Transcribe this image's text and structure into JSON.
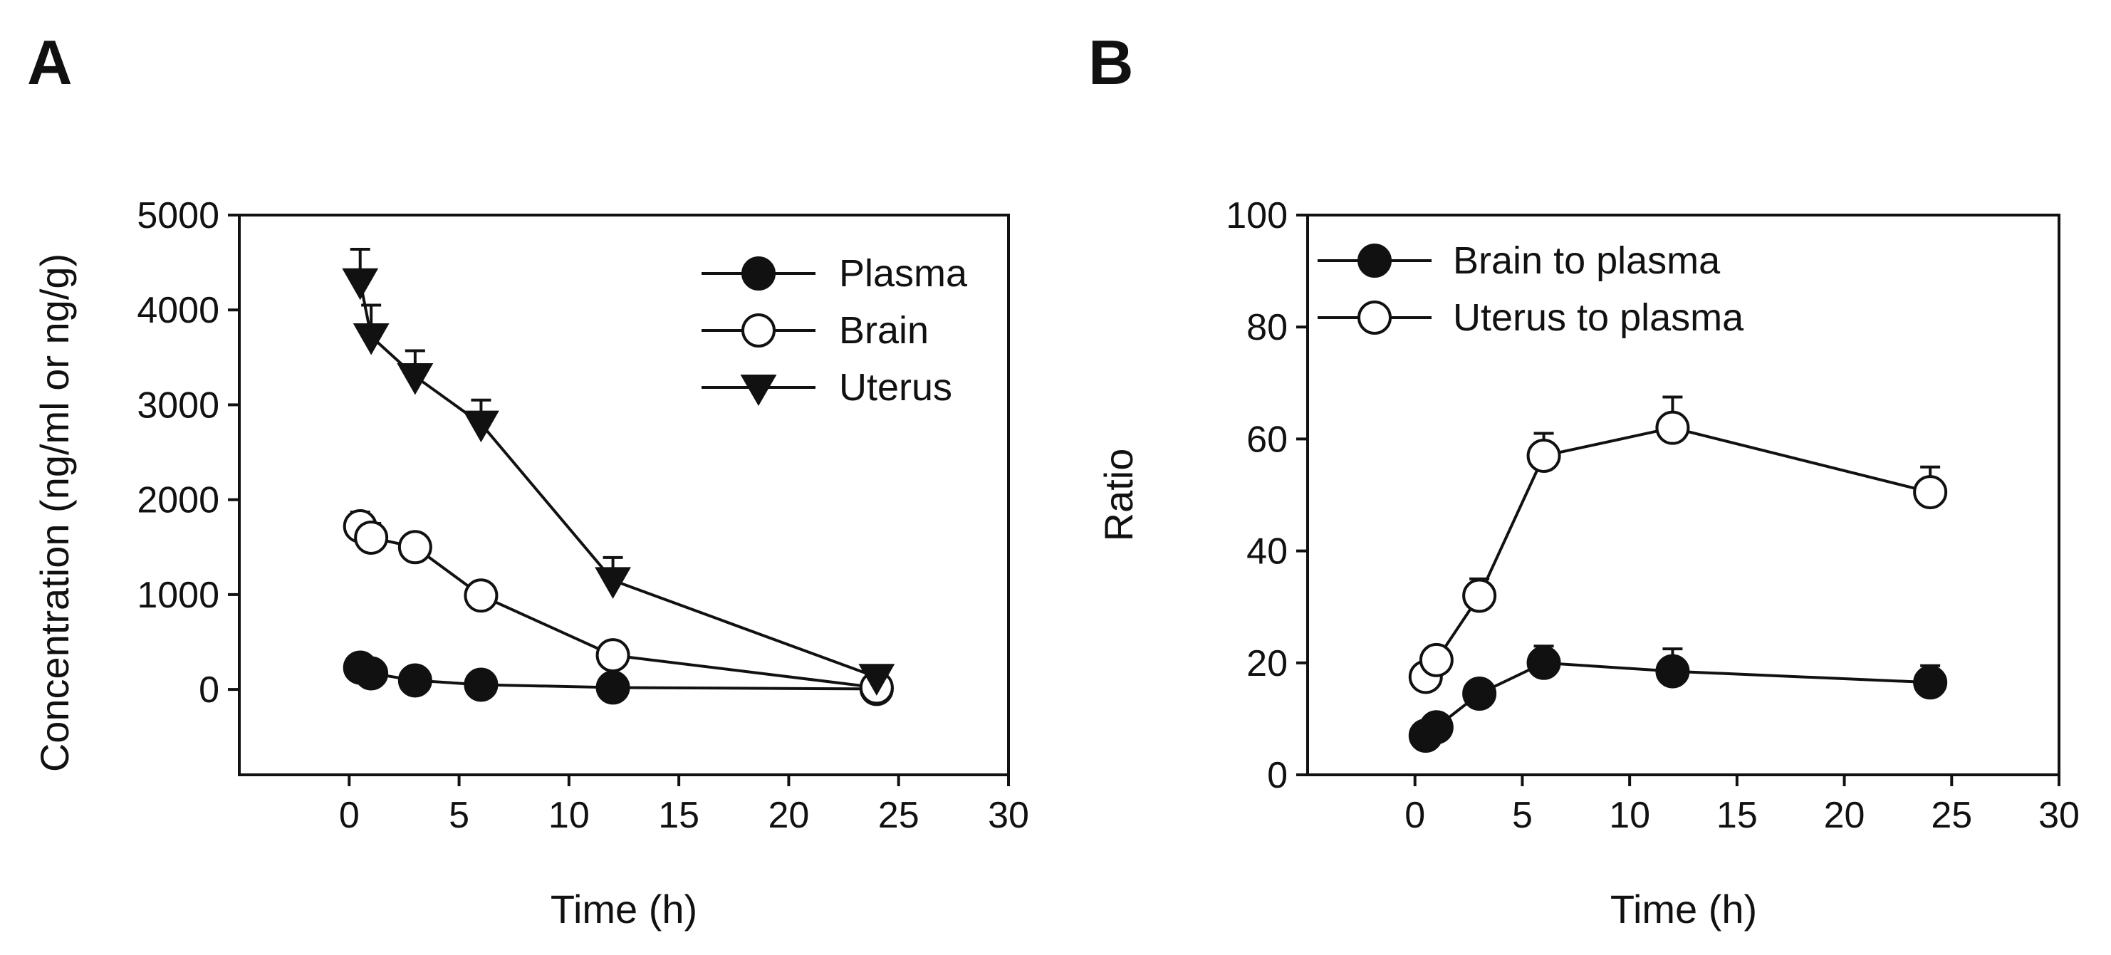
{
  "figure": {
    "colors": {
      "ink": "#111111",
      "background": "#ffffff",
      "open_fill": "#ffffff",
      "closed_fill": "#111111"
    }
  },
  "chart_data": [
    {
      "panel_label": "A",
      "type": "line",
      "xlabel": "Time (h)",
      "ylabel": "Concentration (ng/ml or ng/g)",
      "xlim": [
        -5,
        30
      ],
      "ylim": [
        -900,
        5000
      ],
      "xticks": [
        0,
        5,
        10,
        15,
        20,
        25,
        30
      ],
      "xtick_labels": [
        "0",
        "5",
        "10",
        "15",
        "20",
        "25",
        "30"
      ],
      "yticks": [
        0,
        1000,
        2000,
        3000,
        4000,
        5000
      ],
      "ytick_labels": [
        "0",
        "1000",
        "2000",
        "3000",
        "4000",
        "5000"
      ],
      "legend_position": "top-right",
      "series": [
        {
          "name": "Plasma",
          "marker": "circle-filled",
          "x": [
            0.5,
            1,
            3,
            6,
            12,
            24
          ],
          "y": [
            230,
            170,
            95,
            50,
            20,
            5
          ],
          "error": [
            0,
            0,
            0,
            0,
            0,
            0
          ]
        },
        {
          "name": "Brain",
          "marker": "circle-open",
          "x": [
            0.5,
            1,
            3,
            6,
            12,
            24
          ],
          "y": [
            1720,
            1600,
            1500,
            990,
            360,
            20
          ],
          "error": [
            150,
            150,
            0,
            0,
            0,
            0
          ]
        },
        {
          "name": "Uterus",
          "marker": "triangle-down-filled",
          "x": [
            0.5,
            1,
            3,
            6,
            12,
            24
          ],
          "y": [
            4300,
            3720,
            3300,
            2800,
            1150,
            130
          ],
          "error": [
            340,
            330,
            270,
            250,
            240,
            0
          ]
        }
      ]
    },
    {
      "panel_label": "B",
      "type": "line",
      "xlabel": "Time (h)",
      "ylabel": "Ratio",
      "xlim": [
        -5,
        30
      ],
      "ylim": [
        0,
        100
      ],
      "xticks": [
        0,
        5,
        10,
        15,
        20,
        25,
        30
      ],
      "xtick_labels": [
        "0",
        "5",
        "10",
        "15",
        "20",
        "25",
        "30"
      ],
      "yticks": [
        0,
        20,
        40,
        60,
        80,
        100
      ],
      "ytick_labels": [
        "0",
        "20",
        "40",
        "60",
        "80",
        "100"
      ],
      "legend_position": "top-left",
      "series": [
        {
          "name": "Brain to plasma",
          "marker": "circle-filled",
          "x": [
            0.5,
            1,
            3,
            6,
            12,
            24
          ],
          "y": [
            7,
            8.5,
            14.5,
            20,
            18.5,
            16.5
          ],
          "error": [
            0,
            0,
            0,
            3,
            4,
            3
          ]
        },
        {
          "name": "Uterus to plasma",
          "marker": "circle-open",
          "x": [
            0.5,
            1,
            3,
            6,
            12,
            24
          ],
          "y": [
            17.5,
            20.5,
            32,
            57,
            62,
            50.5
          ],
          "error": [
            0,
            0,
            3,
            4,
            5.5,
            4.5
          ]
        }
      ]
    }
  ]
}
